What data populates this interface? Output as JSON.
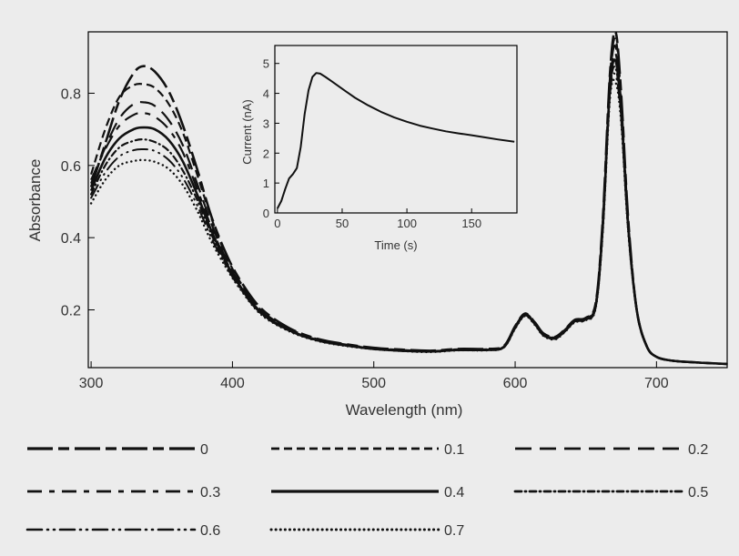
{
  "chart_data": [
    {
      "type": "line",
      "title": "",
      "xlabel": "Wavelength (nm)",
      "ylabel": "Absorbance",
      "xlim": [
        298,
        750
      ],
      "ylim": [
        0.04,
        0.97
      ],
      "xticks": [
        300,
        400,
        500,
        600,
        700
      ],
      "yticks": [
        0.2,
        0.4,
        0.6,
        0.8
      ],
      "grid": false,
      "legend_position": "bottom",
      "x": [
        300,
        310,
        320,
        330,
        337,
        345,
        355,
        365,
        375,
        385,
        395,
        405,
        420,
        440,
        460,
        480,
        500,
        520,
        540,
        560,
        580,
        592,
        600,
        607,
        614,
        620,
        628,
        635,
        642,
        650,
        657,
        662,
        667,
        671,
        675,
        680,
        686,
        693,
        700,
        710,
        725,
        750
      ],
      "series": [
        {
          "name": "0",
          "values": [
            0.54,
            0.66,
            0.78,
            0.855,
            0.875,
            0.86,
            0.805,
            0.71,
            0.59,
            0.46,
            0.36,
            0.285,
            0.205,
            0.15,
            0.12,
            0.105,
            0.095,
            0.09,
            0.087,
            0.092,
            0.092,
            0.1,
            0.155,
            0.19,
            0.165,
            0.135,
            0.125,
            0.145,
            0.172,
            0.178,
            0.22,
            0.45,
            0.85,
            0.97,
            0.8,
            0.45,
            0.2,
            0.1,
            0.07,
            0.06,
            0.055,
            0.05
          ]
        },
        {
          "name": "0.1",
          "values": [
            0.575,
            0.7,
            0.79,
            0.822,
            0.825,
            0.815,
            0.77,
            0.69,
            0.575,
            0.455,
            0.355,
            0.28,
            0.2,
            0.148,
            0.119,
            0.104,
            0.094,
            0.089,
            0.086,
            0.091,
            0.091,
            0.099,
            0.154,
            0.189,
            0.164,
            0.134,
            0.124,
            0.144,
            0.171,
            0.177,
            0.218,
            0.445,
            0.84,
            0.95,
            0.785,
            0.445,
            0.2,
            0.1,
            0.07,
            0.06,
            0.055,
            0.05
          ]
        },
        {
          "name": "0.2",
          "values": [
            0.55,
            0.65,
            0.73,
            0.77,
            0.775,
            0.765,
            0.725,
            0.655,
            0.55,
            0.44,
            0.345,
            0.275,
            0.197,
            0.146,
            0.117,
            0.103,
            0.093,
            0.088,
            0.085,
            0.09,
            0.09,
            0.098,
            0.153,
            0.188,
            0.163,
            0.133,
            0.123,
            0.143,
            0.17,
            0.176,
            0.216,
            0.44,
            0.83,
            0.93,
            0.77,
            0.44,
            0.2,
            0.1,
            0.07,
            0.06,
            0.055,
            0.05
          ]
        },
        {
          "name": "0.3",
          "values": [
            0.56,
            0.645,
            0.71,
            0.74,
            0.745,
            0.735,
            0.7,
            0.635,
            0.535,
            0.43,
            0.34,
            0.27,
            0.195,
            0.145,
            0.116,
            0.102,
            0.093,
            0.088,
            0.085,
            0.09,
            0.09,
            0.098,
            0.152,
            0.187,
            0.162,
            0.132,
            0.122,
            0.142,
            0.169,
            0.175,
            0.214,
            0.435,
            0.82,
            0.91,
            0.76,
            0.435,
            0.2,
            0.1,
            0.07,
            0.06,
            0.055,
            0.05
          ]
        },
        {
          "name": "0.4",
          "values": [
            0.53,
            0.62,
            0.675,
            0.7,
            0.705,
            0.7,
            0.67,
            0.61,
            0.52,
            0.42,
            0.335,
            0.268,
            0.193,
            0.144,
            0.116,
            0.102,
            0.092,
            0.087,
            0.085,
            0.089,
            0.089,
            0.097,
            0.151,
            0.186,
            0.161,
            0.131,
            0.121,
            0.141,
            0.168,
            0.174,
            0.212,
            0.43,
            0.81,
            0.89,
            0.75,
            0.43,
            0.2,
            0.1,
            0.07,
            0.06,
            0.055,
            0.05
          ]
        },
        {
          "name": "0.5",
          "values": [
            0.52,
            0.6,
            0.65,
            0.668,
            0.672,
            0.665,
            0.64,
            0.585,
            0.505,
            0.41,
            0.33,
            0.265,
            0.191,
            0.143,
            0.115,
            0.101,
            0.092,
            0.087,
            0.084,
            0.089,
            0.089,
            0.097,
            0.15,
            0.185,
            0.16,
            0.13,
            0.12,
            0.14,
            0.167,
            0.173,
            0.21,
            0.425,
            0.8,
            0.87,
            0.74,
            0.425,
            0.2,
            0.1,
            0.07,
            0.06,
            0.055,
            0.05
          ]
        },
        {
          "name": "0.6",
          "values": [
            0.51,
            0.58,
            0.625,
            0.642,
            0.645,
            0.64,
            0.615,
            0.565,
            0.49,
            0.4,
            0.325,
            0.262,
            0.19,
            0.142,
            0.115,
            0.101,
            0.091,
            0.086,
            0.084,
            0.088,
            0.088,
            0.096,
            0.149,
            0.184,
            0.159,
            0.129,
            0.119,
            0.139,
            0.166,
            0.172,
            0.208,
            0.42,
            0.79,
            0.85,
            0.73,
            0.42,
            0.2,
            0.1,
            0.07,
            0.06,
            0.055,
            0.05
          ]
        },
        {
          "name": "0.7",
          "values": [
            0.495,
            0.56,
            0.6,
            0.612,
            0.615,
            0.61,
            0.59,
            0.545,
            0.475,
            0.39,
            0.32,
            0.26,
            0.188,
            0.141,
            0.114,
            0.1,
            0.091,
            0.086,
            0.083,
            0.088,
            0.088,
            0.096,
            0.148,
            0.183,
            0.158,
            0.128,
            0.118,
            0.138,
            0.165,
            0.171,
            0.206,
            0.415,
            0.78,
            0.83,
            0.72,
            0.415,
            0.2,
            0.1,
            0.07,
            0.06,
            0.055,
            0.05
          ]
        }
      ]
    },
    {
      "type": "line",
      "title": "",
      "xlabel": "Time (s)",
      "ylabel": "Current (nA)",
      "xlim": [
        -2,
        185
      ],
      "ylim": [
        0,
        5.6
      ],
      "xticks": [
        0,
        50,
        100,
        150
      ],
      "yticks": [
        0,
        1,
        2,
        3,
        4,
        5
      ],
      "grid": false,
      "x": [
        0,
        3,
        6,
        9,
        12,
        15,
        18,
        21,
        24,
        27,
        30,
        33,
        37,
        42,
        50,
        60,
        70,
        80,
        90,
        100,
        110,
        120,
        130,
        140,
        150,
        160,
        170,
        183
      ],
      "series": [
        {
          "values": [
            0.15,
            0.4,
            0.8,
            1.15,
            1.3,
            1.5,
            2.2,
            3.3,
            4.1,
            4.55,
            4.68,
            4.66,
            4.55,
            4.4,
            4.15,
            3.85,
            3.6,
            3.38,
            3.2,
            3.05,
            2.92,
            2.82,
            2.73,
            2.66,
            2.6,
            2.53,
            2.46,
            2.38
          ]
        }
      ]
    }
  ]
}
